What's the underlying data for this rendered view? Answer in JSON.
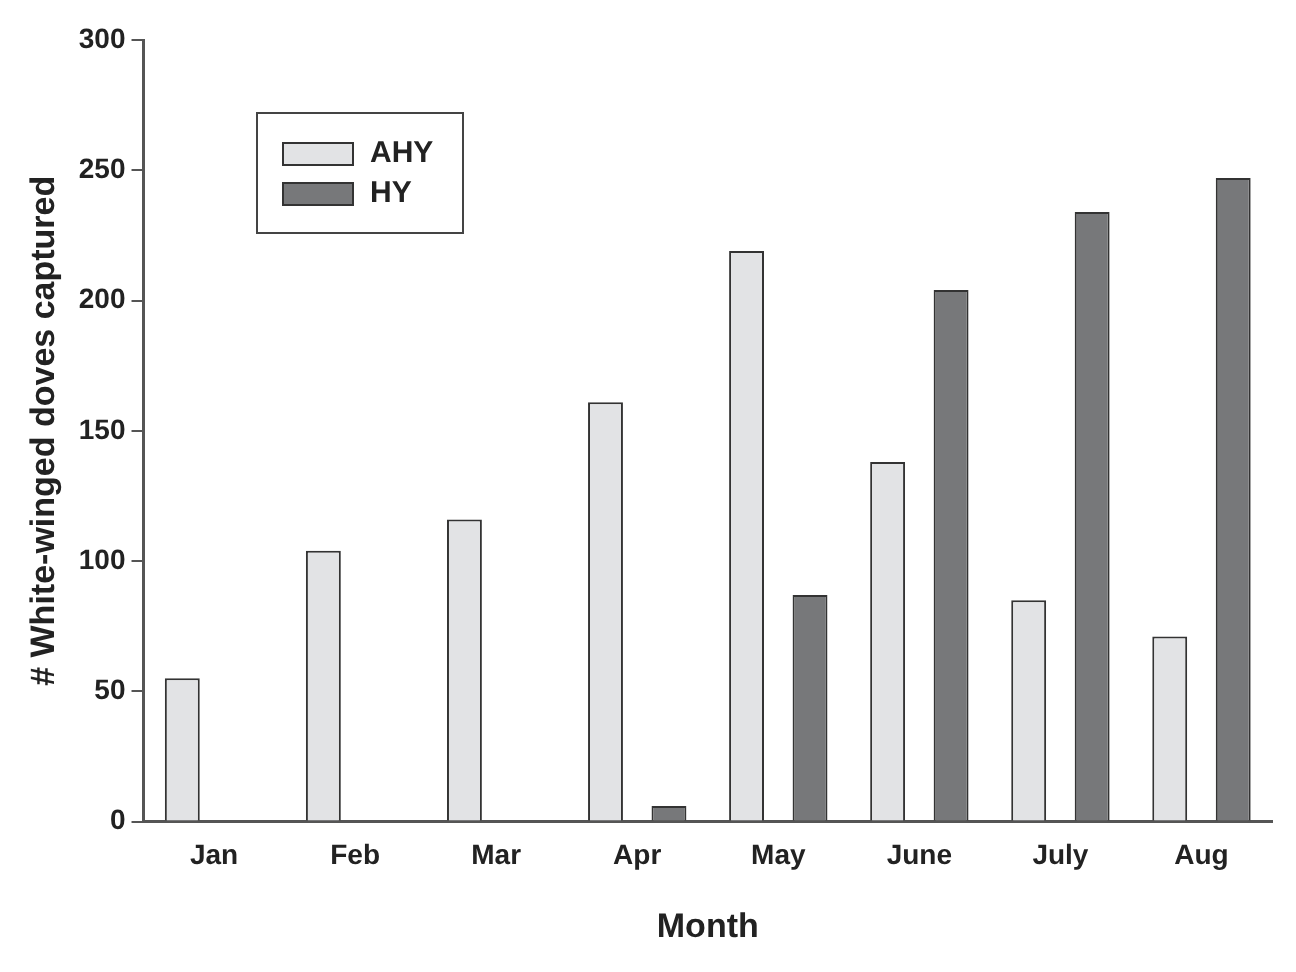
{
  "chart_data": {
    "type": "bar",
    "xlabel": "Month",
    "ylabel": "# White-winged doves captured",
    "categories": [
      "Jan",
      "Feb",
      "Mar",
      "Apr",
      "May",
      "June",
      "July",
      "Aug"
    ],
    "series": [
      {
        "name": "AHY",
        "color": "#e2e3e5",
        "values": [
          55,
          104,
          116,
          161,
          219,
          138,
          85,
          71
        ]
      },
      {
        "name": "HY",
        "color": "#77787a",
        "values": [
          null,
          null,
          null,
          6,
          87,
          204,
          234,
          247
        ]
      }
    ],
    "ylim": [
      0,
      300
    ],
    "yticks": [
      0,
      50,
      100,
      150,
      200,
      250,
      300
    ],
    "grid": false,
    "legend": "top left"
  }
}
